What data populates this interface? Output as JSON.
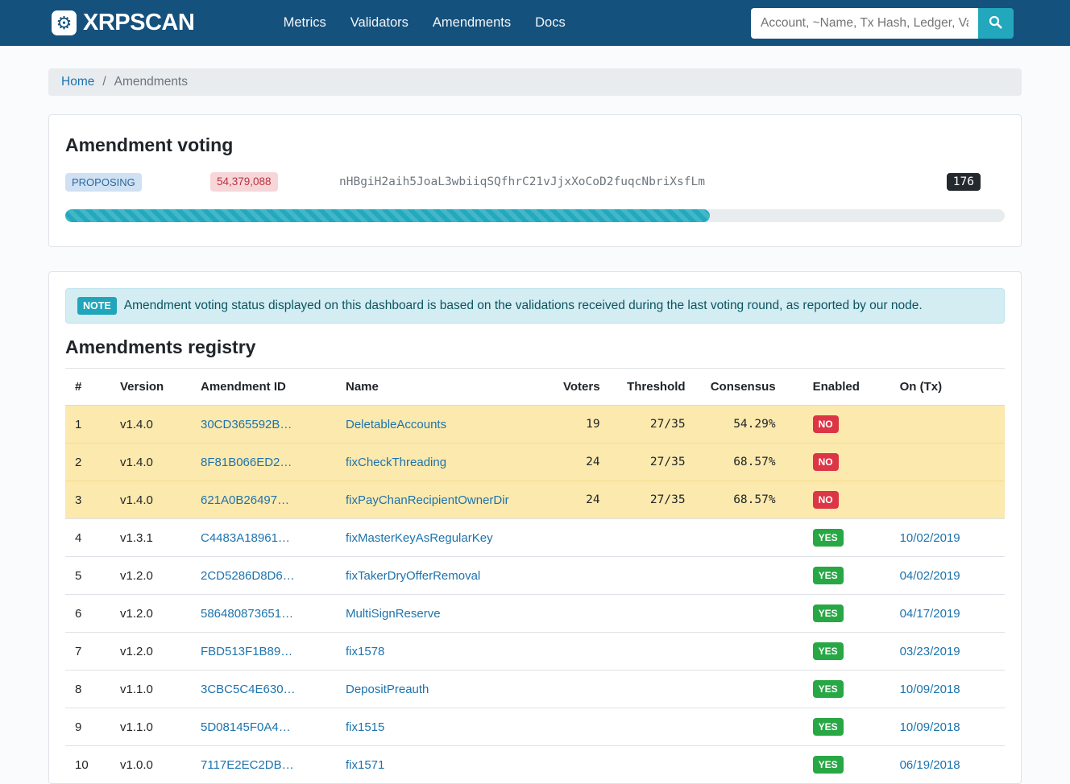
{
  "navbar": {
    "brand": "XRPSCAN",
    "links": [
      "Metrics",
      "Validators",
      "Amendments",
      "Docs"
    ],
    "search_placeholder": "Account, ~Name, Tx Hash, Ledger, Validator"
  },
  "breadcrumb": {
    "home": "Home",
    "separator": "/",
    "current": "Amendments"
  },
  "voting_card": {
    "title": "Amendment voting",
    "status": "PROPOSING",
    "ledger_index": "54,379,088",
    "validator": "nHBgiH2aih5JoaL3wbiiqSQfhrC21vJjxXoCoD2fuqcNbriXsfLm",
    "count": "176",
    "progress_percent": 68.57
  },
  "note": {
    "badge": "NOTE",
    "text": "Amendment voting status displayed on this dashboard is based on the validations received during the last voting round, as reported by our node."
  },
  "registry": {
    "title": "Amendments registry",
    "columns": [
      "#",
      "Version",
      "Amendment ID",
      "Name",
      "Voters",
      "Threshold",
      "Consensus",
      "Enabled",
      "On (Tx)"
    ],
    "rows": [
      {
        "index": "1",
        "version": "v1.4.0",
        "amendment_id": "30CD365592B…",
        "name": "DeletableAccounts",
        "voters": "19",
        "threshold": "27/35",
        "consensus": "54.29%",
        "enabled": "NO",
        "on_tx": "",
        "highlight": true
      },
      {
        "index": "2",
        "version": "v1.4.0",
        "amendment_id": "8F81B066ED2…",
        "name": "fixCheckThreading",
        "voters": "24",
        "threshold": "27/35",
        "consensus": "68.57%",
        "enabled": "NO",
        "on_tx": "",
        "highlight": true
      },
      {
        "index": "3",
        "version": "v1.4.0",
        "amendment_id": "621A0B26497…",
        "name": "fixPayChanRecipientOwnerDir",
        "voters": "24",
        "threshold": "27/35",
        "consensus": "68.57%",
        "enabled": "NO",
        "on_tx": "",
        "highlight": true
      },
      {
        "index": "4",
        "version": "v1.3.1",
        "amendment_id": "C4483A18961…",
        "name": "fixMasterKeyAsRegularKey",
        "voters": "",
        "threshold": "",
        "consensus": "",
        "enabled": "YES",
        "on_tx": "10/02/2019",
        "highlight": false
      },
      {
        "index": "5",
        "version": "v1.2.0",
        "amendment_id": "2CD5286D8D6…",
        "name": "fixTakerDryOfferRemoval",
        "voters": "",
        "threshold": "",
        "consensus": "",
        "enabled": "YES",
        "on_tx": "04/02/2019",
        "highlight": false
      },
      {
        "index": "6",
        "version": "v1.2.0",
        "amendment_id": "586480873651…",
        "name": "MultiSignReserve",
        "voters": "",
        "threshold": "",
        "consensus": "",
        "enabled": "YES",
        "on_tx": "04/17/2019",
        "highlight": false
      },
      {
        "index": "7",
        "version": "v1.2.0",
        "amendment_id": "FBD513F1B89…",
        "name": "fix1578",
        "voters": "",
        "threshold": "",
        "consensus": "",
        "enabled": "YES",
        "on_tx": "03/23/2019",
        "highlight": false
      },
      {
        "index": "8",
        "version": "v1.1.0",
        "amendment_id": "3CBC5C4E630…",
        "name": "DepositPreauth",
        "voters": "",
        "threshold": "",
        "consensus": "",
        "enabled": "YES",
        "on_tx": "10/09/2018",
        "highlight": false
      },
      {
        "index": "9",
        "version": "v1.1.0",
        "amendment_id": "5D08145F0A4…",
        "name": "fix1515",
        "voters": "",
        "threshold": "",
        "consensus": "",
        "enabled": "YES",
        "on_tx": "10/09/2018",
        "highlight": false
      },
      {
        "index": "10",
        "version": "v1.0.0",
        "amendment_id": "7117E2EC2DB…",
        "name": "fix1571",
        "voters": "",
        "threshold": "",
        "consensus": "",
        "enabled": "YES",
        "on_tx": "06/19/2018",
        "highlight": false
      }
    ]
  },
  "colors": {
    "navbar": "#15517d",
    "accent_teal": "#22a9bd",
    "link": "#1d73ad",
    "warning_row": "#fce9ae",
    "enabled_yes": "#28a745",
    "enabled_no": "#dc3545",
    "proposing_bg": "#cfe1f3",
    "proposing_text": "#30689c",
    "ledger_badge_bg": "#f6d6d9",
    "ledger_badge_text": "#bb3240",
    "count_badge_bg": "#24292e",
    "note_bg": "#d3edf3",
    "note_text": "#0c5460"
  }
}
